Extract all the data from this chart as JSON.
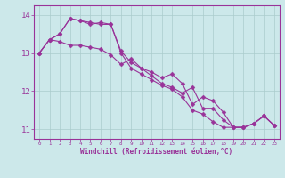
{
  "xlabel": "Windchill (Refroidissement éolien,°C)",
  "background_color": "#cce8ea",
  "line_color": "#993399",
  "xlim": [
    -0.5,
    23.5
  ],
  "ylim": [
    10.75,
    14.25
  ],
  "yticks": [
    11,
    12,
    13,
    14
  ],
  "xtick_labels": [
    "0",
    "1",
    "2",
    "3",
    "4",
    "5",
    "6",
    "7",
    "8",
    "9",
    "10",
    "11",
    "12",
    "13",
    "14",
    "15",
    "16",
    "17",
    "18",
    "19",
    "20",
    "21",
    "22",
    "23"
  ],
  "line1_x": [
    0,
    1,
    2,
    3,
    4,
    5,
    6,
    7,
    8,
    9,
    10,
    11,
    12,
    13,
    14,
    15,
    16,
    17,
    18,
    19,
    20,
    21,
    22,
    23
  ],
  "line1_y": [
    13.0,
    13.35,
    13.5,
    13.9,
    13.85,
    13.75,
    13.8,
    13.75,
    13.05,
    12.75,
    12.6,
    12.5,
    12.35,
    12.45,
    12.2,
    11.65,
    11.85,
    11.75,
    11.45,
    11.05,
    11.05,
    11.15,
    11.35,
    11.1
  ],
  "line2_x": [
    0,
    1,
    2,
    3,
    4,
    5,
    6,
    7,
    8,
    9,
    10,
    11,
    12,
    13,
    14,
    15,
    16,
    17,
    18,
    19,
    20,
    21,
    22,
    23
  ],
  "line2_y": [
    13.0,
    13.35,
    13.3,
    13.2,
    13.2,
    13.15,
    13.1,
    12.95,
    12.7,
    12.85,
    12.6,
    12.4,
    12.2,
    12.1,
    11.95,
    12.1,
    11.55,
    11.55,
    11.25,
    11.05,
    11.05,
    11.15,
    11.35,
    11.1
  ],
  "line3_x": [
    0,
    1,
    2,
    3,
    4,
    5,
    6,
    7,
    8,
    9,
    10,
    11,
    12,
    13,
    14,
    15,
    16,
    17,
    18,
    19,
    20,
    21,
    22,
    23
  ],
  "line3_y": [
    13.0,
    13.35,
    13.5,
    13.9,
    13.85,
    13.8,
    13.75,
    13.75,
    13.0,
    12.6,
    12.45,
    12.3,
    12.15,
    12.05,
    11.85,
    11.5,
    11.4,
    11.2,
    11.05,
    11.05,
    11.05,
    11.15,
    11.35,
    11.1
  ],
  "grid_color": "#aacccc",
  "marker": "D",
  "markersize": 2.5,
  "linewidth": 0.8
}
